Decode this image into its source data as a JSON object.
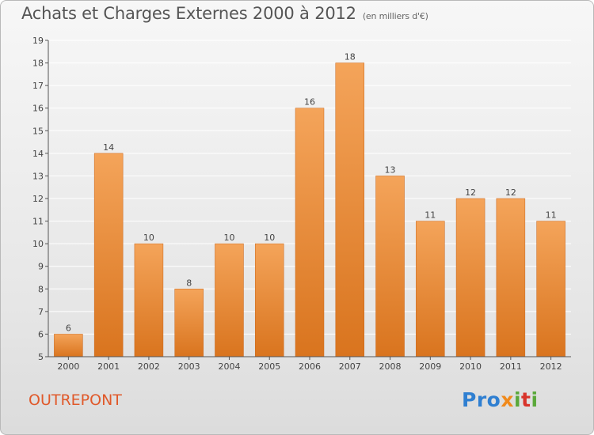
{
  "title": "Achats et Charges Externes 2000 à 2012",
  "subtitle": "(en milliers d'€)",
  "commune": "OUTREPONT",
  "logo": {
    "p1": "Pro",
    "p2": "x",
    "p3": "i",
    "p4": "t",
    "p5": "i"
  },
  "colors": {
    "bar_top": "#f4a45a",
    "bar_bottom": "#d9741e",
    "grid": "#ffffff",
    "axis": "#555555"
  },
  "chart_data": {
    "type": "bar",
    "categories": [
      "2000",
      "2001",
      "2002",
      "2003",
      "2004",
      "2005",
      "2006",
      "2007",
      "2008",
      "2009",
      "2010",
      "2011",
      "2012"
    ],
    "values": [
      6,
      14,
      10,
      8,
      10,
      10,
      16,
      18,
      13,
      11,
      12,
      12,
      11
    ],
    "title": "Achats et Charges Externes 2000 à 2012",
    "subtitle": "(en milliers d'€)",
    "xlabel": "",
    "ylabel": "",
    "ylim": [
      5,
      19
    ],
    "yticks": [
      5,
      6,
      7,
      8,
      9,
      10,
      11,
      12,
      13,
      14,
      15,
      16,
      17,
      18,
      19
    ],
    "grid": true,
    "legend": "none"
  }
}
